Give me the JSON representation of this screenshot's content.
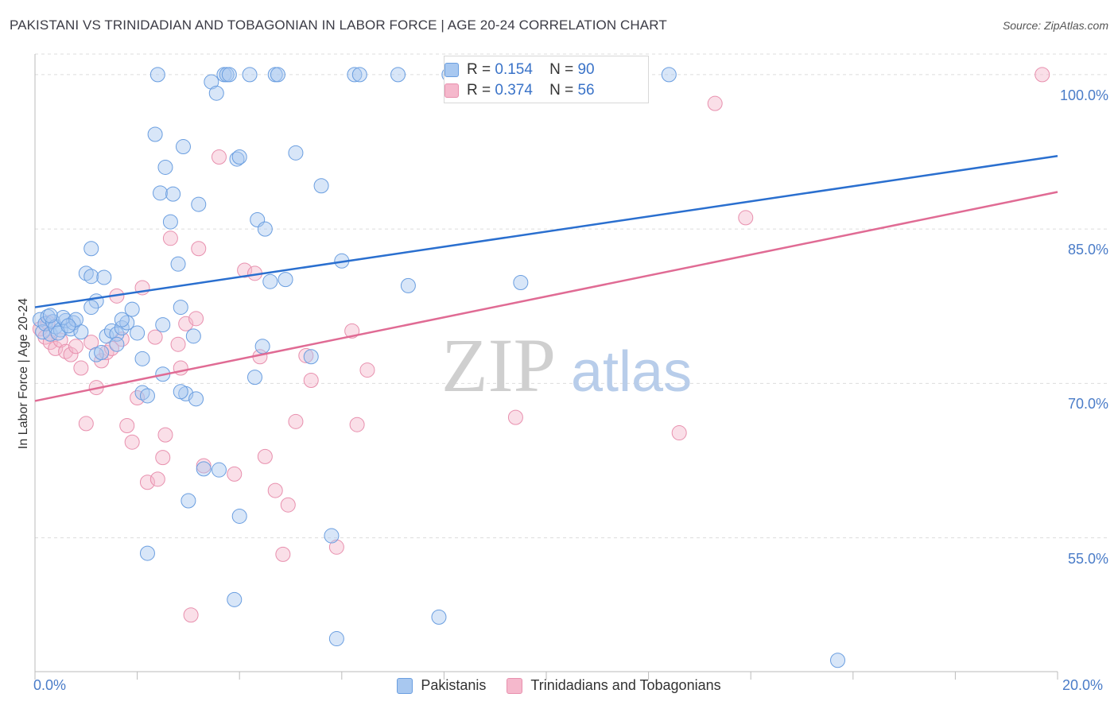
{
  "title": "PAKISTANI VS TRINIDADIAN AND TOBAGONIAN IN LABOR FORCE | AGE 20-24 CORRELATION CHART",
  "source": "Source: ZipAtlas.com",
  "watermark": {
    "zip": "ZIP",
    "atlas": "atlas"
  },
  "legend_top": {
    "rows": [
      {
        "r_label": "R =",
        "r_value": "0.154",
        "n_label": "N =",
        "n_value": "90"
      },
      {
        "r_label": "R =",
        "r_value": "0.374",
        "n_label": "N =",
        "n_value": "56"
      }
    ]
  },
  "legend_bottom": {
    "series1": "Pakistanis",
    "series2": "Trinidadians and Tobagonians"
  },
  "colors": {
    "blue_fill": "#a8c8f0",
    "blue_stroke": "#6a9ee0",
    "blue_line": "#2a6fcf",
    "pink_fill": "#f5b8cc",
    "pink_stroke": "#e890ae",
    "pink_line": "#e06b94",
    "tick_label": "#4a7cc8",
    "grid": "#dddddd"
  },
  "chart_data": {
    "type": "scatter",
    "title": "PAKISTANI VS TRINIDADIAN AND TOBAGONIAN IN LABOR FORCE | AGE 20-24 CORRELATION CHART",
    "xlabel": "",
    "ylabel": "In Labor Force | Age 20-24",
    "xlim": [
      0,
      20
    ],
    "ylim": [
      42,
      102
    ],
    "x_tick_labels": [
      "0.0%",
      "20.0%"
    ],
    "y_ticks": [
      55,
      70,
      85,
      100
    ],
    "y_tick_labels": [
      "55.0%",
      "70.0%",
      "85.0%",
      "100.0%"
    ],
    "grid": true,
    "legend_position": "top-center",
    "series": [
      {
        "name": "Pakistanis",
        "R": 0.154,
        "N": 90,
        "trend": {
          "x": [
            0,
            20
          ],
          "y": [
            77.4,
            92.1
          ]
        },
        "points": [
          [
            0.1,
            76.2
          ],
          [
            0.15,
            75.0
          ],
          [
            0.2,
            75.8
          ],
          [
            0.25,
            76.5
          ],
          [
            0.3,
            74.8
          ],
          [
            0.35,
            76.0
          ],
          [
            0.4,
            75.5
          ],
          [
            0.5,
            75.2
          ],
          [
            0.6,
            76.1
          ],
          [
            0.7,
            75.3
          ],
          [
            0.75,
            75.9
          ],
          [
            0.9,
            75.0
          ],
          [
            1.0,
            80.7
          ],
          [
            1.1,
            80.4
          ],
          [
            1.2,
            78.0
          ],
          [
            1.35,
            80.3
          ],
          [
            1.1,
            77.4
          ],
          [
            1.2,
            72.8
          ],
          [
            1.4,
            74.6
          ],
          [
            1.5,
            75.1
          ],
          [
            1.6,
            74.8
          ],
          [
            1.7,
            75.4
          ],
          [
            1.8,
            75.9
          ],
          [
            1.9,
            77.2
          ],
          [
            2.0,
            74.9
          ],
          [
            2.1,
            72.4
          ],
          [
            2.1,
            69.1
          ],
          [
            2.2,
            68.8
          ],
          [
            2.35,
            94.2
          ],
          [
            2.45,
            88.5
          ],
          [
            2.55,
            91.0
          ],
          [
            2.65,
            85.7
          ],
          [
            2.7,
            88.4
          ],
          [
            2.8,
            81.6
          ],
          [
            2.85,
            77.4
          ],
          [
            2.9,
            93.0
          ],
          [
            2.95,
            69.0
          ],
          [
            3.0,
            58.6
          ],
          [
            3.1,
            74.6
          ],
          [
            3.2,
            87.4
          ],
          [
            3.3,
            61.7
          ],
          [
            3.45,
            99.3
          ],
          [
            3.55,
            98.2
          ],
          [
            3.6,
            61.6
          ],
          [
            3.7,
            100.0
          ],
          [
            3.75,
            100.0
          ],
          [
            3.8,
            100.0
          ],
          [
            3.9,
            49.0
          ],
          [
            3.95,
            91.8
          ],
          [
            4.0,
            57.1
          ],
          [
            4.2,
            100.0
          ],
          [
            4.3,
            70.6
          ],
          [
            4.35,
            85.9
          ],
          [
            4.45,
            73.6
          ],
          [
            4.5,
            85.0
          ],
          [
            4.6,
            79.9
          ],
          [
            4.7,
            100.0
          ],
          [
            4.75,
            100.0
          ],
          [
            4.9,
            80.1
          ],
          [
            5.1,
            92.4
          ],
          [
            5.4,
            72.6
          ],
          [
            5.6,
            89.2
          ],
          [
            5.8,
            55.2
          ],
          [
            5.9,
            45.2
          ],
          [
            6.0,
            81.9
          ],
          [
            6.25,
            100.0
          ],
          [
            6.35,
            100.0
          ],
          [
            7.1,
            100.0
          ],
          [
            7.3,
            79.5
          ],
          [
            7.9,
            47.3
          ],
          [
            1.1,
            83.1
          ],
          [
            1.6,
            73.8
          ],
          [
            2.5,
            75.7
          ],
          [
            0.55,
            76.4
          ],
          [
            0.45,
            74.9
          ],
          [
            1.3,
            73.0
          ],
          [
            2.5,
            70.9
          ],
          [
            2.2,
            53.5
          ],
          [
            2.85,
            69.2
          ],
          [
            3.15,
            68.5
          ],
          [
            9.5,
            79.8
          ],
          [
            12.4,
            100.0
          ],
          [
            15.7,
            43.1
          ],
          [
            8.1,
            100.0
          ],
          [
            0.8,
            76.2
          ],
          [
            2.4,
            100.0
          ],
          [
            4.0,
            92.0
          ],
          [
            0.3,
            76.6
          ],
          [
            1.7,
            76.2
          ],
          [
            0.65,
            75.6
          ]
        ]
      },
      {
        "name": "Trinidadians and Tobagonians",
        "R": 0.374,
        "N": 56,
        "trend": {
          "x": [
            0,
            20
          ],
          "y": [
            68.3,
            88.6
          ]
        },
        "points": [
          [
            0.1,
            75.3
          ],
          [
            0.2,
            74.5
          ],
          [
            0.3,
            74.0
          ],
          [
            0.4,
            73.4
          ],
          [
            0.5,
            74.2
          ],
          [
            0.6,
            73.1
          ],
          [
            0.7,
            72.8
          ],
          [
            0.8,
            73.6
          ],
          [
            0.9,
            71.5
          ],
          [
            1.0,
            66.1
          ],
          [
            1.1,
            74.0
          ],
          [
            1.2,
            69.6
          ],
          [
            1.3,
            72.2
          ],
          [
            1.4,
            73.0
          ],
          [
            1.5,
            73.4
          ],
          [
            1.6,
            78.5
          ],
          [
            1.7,
            74.3
          ],
          [
            1.8,
            65.9
          ],
          [
            1.9,
            64.3
          ],
          [
            2.0,
            68.6
          ],
          [
            2.1,
            79.3
          ],
          [
            2.2,
            60.4
          ],
          [
            2.35,
            74.5
          ],
          [
            2.5,
            62.8
          ],
          [
            2.55,
            65.0
          ],
          [
            2.65,
            84.1
          ],
          [
            2.8,
            73.8
          ],
          [
            2.85,
            71.5
          ],
          [
            2.95,
            75.8
          ],
          [
            3.05,
            47.5
          ],
          [
            3.15,
            76.3
          ],
          [
            3.2,
            83.1
          ],
          [
            3.3,
            62.0
          ],
          [
            3.6,
            92.0
          ],
          [
            3.9,
            61.2
          ],
          [
            4.1,
            81.0
          ],
          [
            4.3,
            80.7
          ],
          [
            4.4,
            72.6
          ],
          [
            4.5,
            62.9
          ],
          [
            4.7,
            59.6
          ],
          [
            4.85,
            53.4
          ],
          [
            4.95,
            58.2
          ],
          [
            5.1,
            66.3
          ],
          [
            5.3,
            72.7
          ],
          [
            5.4,
            70.3
          ],
          [
            5.9,
            54.1
          ],
          [
            6.2,
            75.1
          ],
          [
            6.3,
            66.0
          ],
          [
            6.5,
            71.3
          ],
          [
            9.4,
            66.7
          ],
          [
            12.6,
            65.2
          ],
          [
            13.3,
            97.2
          ],
          [
            13.9,
            86.1
          ],
          [
            19.7,
            100.0
          ],
          [
            0.25,
            75.9
          ],
          [
            2.4,
            60.7
          ]
        ]
      }
    ]
  }
}
